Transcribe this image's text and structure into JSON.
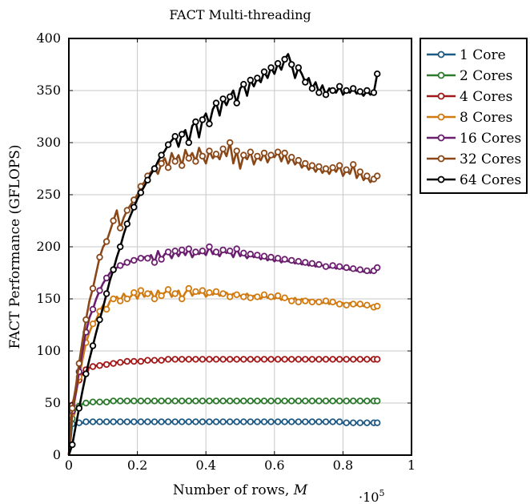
{
  "chart_data": {
    "type": "line",
    "title": "FACT Multi-threading",
    "xlabel": "Number of rows,",
    "xlabel_var": "M",
    "ylabel": "FACT Performance (GFLOPS)",
    "x_scale_base": "·10",
    "x_scale_exp": "5",
    "xlim": [
      0,
      1
    ],
    "ylim": [
      0,
      400
    ],
    "xticks": [
      "0",
      "0.2",
      "0.4",
      "0.6",
      "0.8",
      "1"
    ],
    "yticks": [
      "0",
      "50",
      "100",
      "150",
      "200",
      "250",
      "300",
      "350",
      "400"
    ],
    "grid": true,
    "legend_position": "outside-right",
    "x": [
      0.01,
      0.02,
      0.03,
      0.04,
      0.05,
      0.06,
      0.07,
      0.08,
      0.09,
      0.1,
      0.11,
      0.12,
      0.13,
      0.14,
      0.15,
      0.16,
      0.17,
      0.18,
      0.19,
      0.2,
      0.21,
      0.22,
      0.23,
      0.24,
      0.25,
      0.26,
      0.27,
      0.28,
      0.29,
      0.3,
      0.31,
      0.32,
      0.33,
      0.34,
      0.35,
      0.36,
      0.37,
      0.38,
      0.39,
      0.4,
      0.41,
      0.42,
      0.43,
      0.44,
      0.45,
      0.46,
      0.47,
      0.48,
      0.49,
      0.5,
      0.51,
      0.52,
      0.53,
      0.54,
      0.55,
      0.56,
      0.57,
      0.58,
      0.59,
      0.6,
      0.61,
      0.62,
      0.63,
      0.64,
      0.65,
      0.66,
      0.67,
      0.68,
      0.69,
      0.7,
      0.71,
      0.72,
      0.73,
      0.74,
      0.75,
      0.76,
      0.77,
      0.78,
      0.79,
      0.8,
      0.81,
      0.82,
      0.83,
      0.84,
      0.85,
      0.86,
      0.87,
      0.88,
      0.89,
      0.9
    ],
    "series": [
      {
        "name": "1 Core",
        "color": "#1f5a84",
        "values": [
          30,
          31,
          31,
          31,
          32,
          32,
          32,
          32,
          32,
          32,
          32,
          32,
          32,
          32,
          32,
          32,
          32,
          32,
          32,
          32,
          32,
          32,
          32,
          32,
          32,
          32,
          32,
          32,
          32,
          32,
          32,
          32,
          32,
          32,
          32,
          32,
          32,
          32,
          32,
          32,
          32,
          32,
          32,
          32,
          32,
          32,
          32,
          32,
          32,
          32,
          32,
          32,
          32,
          32,
          32,
          32,
          32,
          32,
          32,
          32,
          32,
          32,
          32,
          32,
          32,
          32,
          32,
          32,
          32,
          32,
          32,
          32,
          32,
          32,
          32,
          32,
          32,
          32,
          32,
          31,
          31,
          31,
          31,
          31,
          31,
          31,
          31,
          31,
          31,
          31
        ]
      },
      {
        "name": "2 Cores",
        "color": "#2d7a2d",
        "values": [
          35,
          44,
          47,
          49,
          50,
          50,
          51,
          51,
          51,
          51,
          51,
          52,
          52,
          52,
          52,
          52,
          52,
          52,
          52,
          52,
          52,
          52,
          52,
          52,
          52,
          52,
          52,
          52,
          52,
          52,
          52,
          52,
          52,
          52,
          52,
          52,
          52,
          52,
          52,
          52,
          52,
          52,
          52,
          52,
          52,
          52,
          52,
          52,
          52,
          52,
          52,
          52,
          52,
          52,
          52,
          52,
          52,
          52,
          52,
          52,
          52,
          52,
          52,
          52,
          52,
          52,
          52,
          52,
          52,
          52,
          52,
          52,
          52,
          52,
          52,
          52,
          52,
          52,
          52,
          52,
          52,
          52,
          52,
          52,
          52,
          52,
          52,
          52,
          52,
          52
        ]
      },
      {
        "name": "4 Cores",
        "color": "#a21818",
        "values": [
          48,
          62,
          72,
          78,
          82,
          84,
          85,
          86,
          86,
          87,
          87,
          88,
          88,
          89,
          89,
          89,
          90,
          90,
          90,
          90,
          90,
          91,
          91,
          91,
          91,
          91,
          91,
          92,
          92,
          92,
          92,
          92,
          92,
          92,
          92,
          92,
          92,
          92,
          92,
          92,
          92,
          92,
          92,
          92,
          92,
          92,
          92,
          92,
          92,
          92,
          92,
          92,
          92,
          92,
          92,
          92,
          92,
          92,
          92,
          92,
          92,
          92,
          92,
          92,
          92,
          92,
          92,
          92,
          92,
          92,
          92,
          92,
          92,
          92,
          92,
          92,
          92,
          92,
          92,
          92,
          92,
          92,
          92,
          92,
          92,
          92,
          92,
          92,
          92,
          92
        ]
      },
      {
        "name": "8 Cores",
        "color": "#d07a10",
        "values": [
          40,
          58,
          75,
          92,
          108,
          118,
          126,
          130,
          138,
          144,
          140,
          148,
          150,
          152,
          148,
          155,
          150,
          152,
          156,
          150,
          158,
          152,
          155,
          157,
          150,
          158,
          153,
          156,
          159,
          152,
          155,
          158,
          150,
          156,
          160,
          153,
          157,
          155,
          158,
          152,
          156,
          154,
          157,
          153,
          155,
          156,
          152,
          155,
          154,
          153,
          152,
          155,
          151,
          153,
          152,
          150,
          154,
          151,
          152,
          150,
          153,
          149,
          151,
          150,
          148,
          151,
          147,
          150,
          148,
          149,
          147,
          148,
          147,
          146,
          148,
          145,
          147,
          146,
          145,
          146,
          144,
          146,
          145,
          144,
          145,
          143,
          144,
          143,
          142,
          143
        ]
      },
      {
        "name": "16 Cores",
        "color": "#6b1e6e",
        "values": [
          42,
          60,
          80,
          100,
          118,
          132,
          140,
          150,
          158,
          165,
          170,
          175,
          178,
          180,
          182,
          183,
          185,
          186,
          187,
          188,
          189,
          190,
          189,
          192,
          185,
          196,
          188,
          193,
          195,
          189,
          196,
          191,
          197,
          192,
          198,
          190,
          195,
          193,
          196,
          192,
          200,
          193,
          195,
          191,
          197,
          194,
          196,
          190,
          198,
          191,
          194,
          189,
          193,
          190,
          192,
          188,
          191,
          187,
          190,
          186,
          189,
          185,
          188,
          186,
          187,
          184,
          186,
          183,
          185,
          182,
          184,
          181,
          183,
          182,
          181,
          180,
          182,
          179,
          181,
          179,
          180,
          178,
          179,
          177,
          178,
          176,
          177,
          175,
          177,
          180
        ]
      },
      {
        "name": "32 Cores",
        "color": "#8a4718",
        "values": [
          45,
          65,
          88,
          110,
          130,
          148,
          160,
          175,
          190,
          200,
          205,
          215,
          225,
          235,
          218,
          228,
          235,
          240,
          245,
          250,
          258,
          262,
          268,
          272,
          275,
          270,
          280,
          285,
          276,
          290,
          282,
          288,
          278,
          293,
          285,
          290,
          282,
          295,
          287,
          280,
          292,
          285,
          289,
          284,
          294,
          287,
          300,
          280,
          292,
          275,
          288,
          284,
          291,
          279,
          287,
          283,
          290,
          281,
          288,
          286,
          291,
          282,
          290,
          280,
          286,
          279,
          283,
          276,
          280,
          274,
          278,
          272,
          277,
          271,
          275,
          270,
          276,
          272,
          278,
          268,
          274,
          270,
          279,
          266,
          272,
          264,
          268,
          262,
          265,
          268
        ]
      },
      {
        "name": "64 Cores",
        "color": "#000000",
        "values": [
          10,
          28,
          45,
          62,
          78,
          92,
          105,
          118,
          130,
          142,
          155,
          168,
          178,
          190,
          200,
          212,
          222,
          230,
          238,
          246,
          252,
          258,
          264,
          270,
          275,
          282,
          288,
          292,
          298,
          302,
          306,
          296,
          308,
          312,
          300,
          316,
          320,
          305,
          322,
          328,
          318,
          332,
          338,
          326,
          342,
          336,
          344,
          350,
          338,
          352,
          356,
          345,
          360,
          354,
          362,
          358,
          368,
          362,
          372,
          366,
          376,
          370,
          380,
          385,
          375,
          362,
          372,
          366,
          358,
          362,
          352,
          358,
          348,
          355,
          346,
          352,
          350,
          348,
          354,
          346,
          350,
          348,
          352,
          347,
          349,
          345,
          350,
          346,
          348,
          366
        ]
      }
    ]
  }
}
